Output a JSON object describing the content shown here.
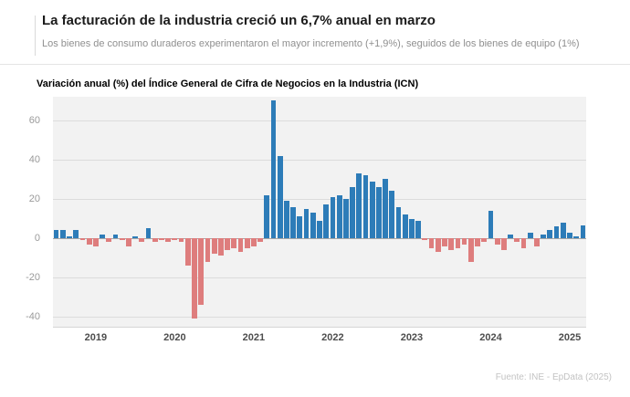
{
  "header": {
    "title": "La facturación de la industria creció un 6,7% anual en marzo",
    "subtitle": "Los bienes de consumo duraderos experimentaron el mayor incremento (+1,9%), seguidos de los bienes de equipo (1%)"
  },
  "chart": {
    "label": "Variación anual (%) del Índice General de Cifra de Negocios en la Industria (ICN)"
  },
  "footer": {
    "source": "Fuente: INE - EpData (2025)"
  },
  "chart_data": {
    "type": "bar",
    "title": "Variación anual (%) del Índice General de Cifra de Negocios en la Industria (ICN)",
    "unit": "%",
    "xlabel": "",
    "ylabel": "Variación anual (%)",
    "ylim": [
      -45,
      72
    ],
    "yticks": [
      60,
      40,
      20,
      0,
      -20,
      -40
    ],
    "year_ticks": [
      "2019",
      "2020",
      "2021",
      "2022",
      "2023",
      "2024",
      "2025"
    ],
    "grid": true,
    "legend": "none",
    "positive_color": "#2d7cb8",
    "negative_color": "#de7d7d",
    "last_value_highlight": 6.7,
    "x": [
      "2018-07",
      "2018-08",
      "2018-09",
      "2018-10",
      "2018-11",
      "2018-12",
      "2019-01",
      "2019-02",
      "2019-03",
      "2019-04",
      "2019-05",
      "2019-06",
      "2019-07",
      "2019-08",
      "2019-09",
      "2019-10",
      "2019-11",
      "2019-12",
      "2020-01",
      "2020-02",
      "2020-03",
      "2020-04",
      "2020-05",
      "2020-06",
      "2020-07",
      "2020-08",
      "2020-09",
      "2020-10",
      "2020-11",
      "2020-12",
      "2021-01",
      "2021-02",
      "2021-03",
      "2021-04",
      "2021-05",
      "2021-06",
      "2021-07",
      "2021-08",
      "2021-09",
      "2021-10",
      "2021-11",
      "2021-12",
      "2022-01",
      "2022-02",
      "2022-03",
      "2022-04",
      "2022-05",
      "2022-06",
      "2022-07",
      "2022-08",
      "2022-09",
      "2022-10",
      "2022-11",
      "2022-12",
      "2023-01",
      "2023-02",
      "2023-03",
      "2023-04",
      "2023-05",
      "2023-06",
      "2023-07",
      "2023-08",
      "2023-09",
      "2023-10",
      "2023-11",
      "2023-12",
      "2024-01",
      "2024-02",
      "2024-03",
      "2024-04",
      "2024-05",
      "2024-06",
      "2024-07",
      "2024-08",
      "2024-09",
      "2024-10",
      "2024-11",
      "2024-12",
      "2025-01",
      "2025-02",
      "2025-03"
    ],
    "values": [
      4,
      4,
      1,
      4,
      -1,
      -3,
      -4,
      2,
      -2,
      2,
      -1,
      -4,
      1,
      -2,
      5,
      -2,
      -1,
      -2,
      -1,
      -2,
      -14,
      -41,
      -34,
      -12,
      -8,
      -9,
      -6,
      -5,
      -7,
      -5,
      -4,
      -2,
      22,
      70,
      42,
      19,
      16,
      11,
      15,
      13,
      9,
      17,
      21,
      22,
      20,
      26,
      33,
      32,
      29,
      26,
      30,
      24,
      16,
      12,
      10,
      9,
      -1,
      -5,
      -7,
      -4,
      -6,
      -5,
      -3,
      -12,
      -4,
      -2,
      14,
      -3,
      -6,
      2,
      -2,
      -5,
      3,
      -4,
      2,
      4,
      6,
      8,
      3,
      1,
      6.7
    ]
  }
}
